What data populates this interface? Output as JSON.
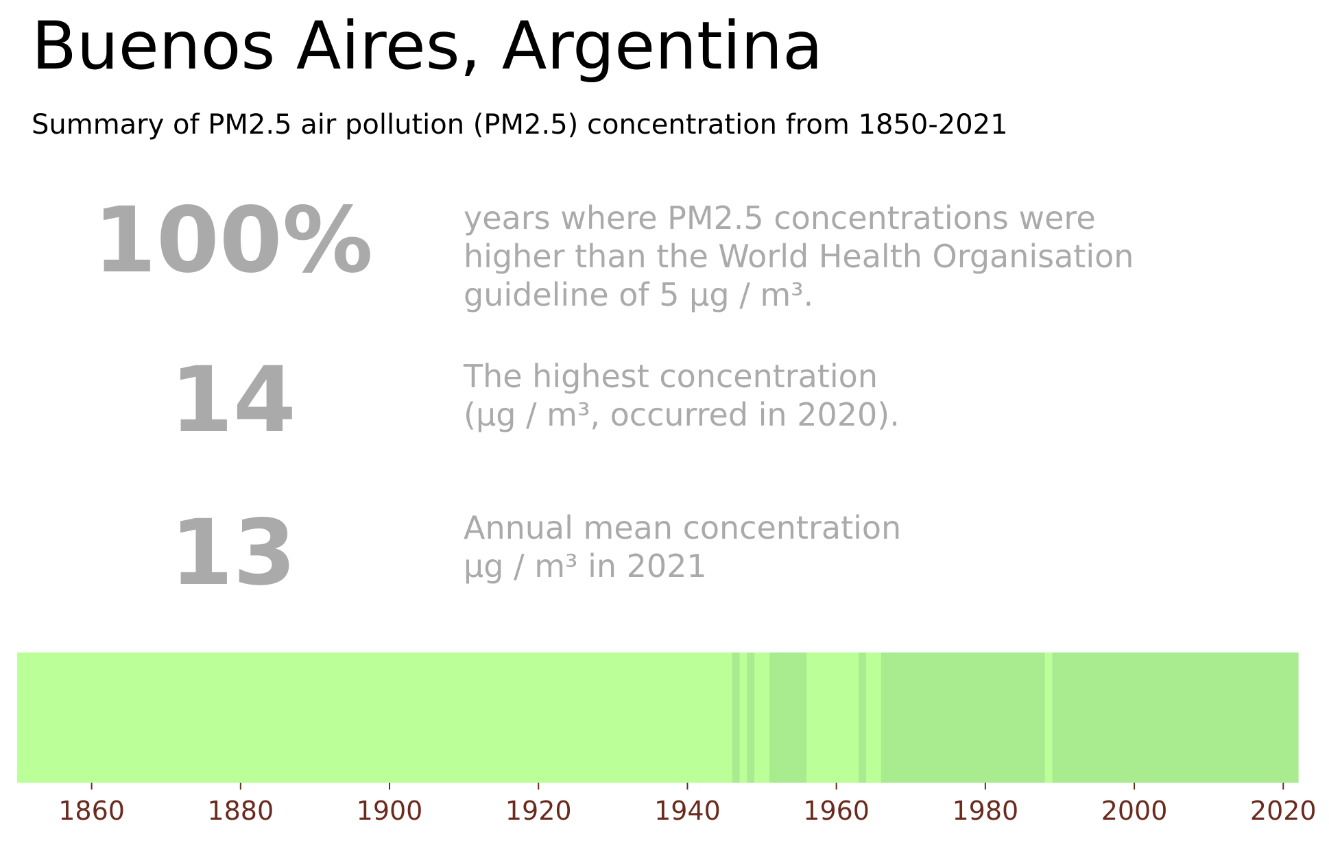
{
  "header": {
    "title": "Buenos Aires, Argentina",
    "subtitle": "Summary of PM2.5 air pollution (PM2.5) concentration from 1850-2021"
  },
  "stats": [
    {
      "value": "100%",
      "lines": [
        "years where PM2.5 concentrations were",
        "higher than the World Health Organisation",
        "guideline of 5 µg / m³."
      ]
    },
    {
      "value": "14",
      "lines": [
        "The highest concentration",
        "(µg / m³, occurred in 2020)."
      ]
    },
    {
      "value": "13",
      "lines": [
        "Annual mean concentration",
        "µg / m³ in 2021"
      ]
    }
  ],
  "chart_data": {
    "type": "heatmap",
    "xlim": [
      1850,
      2022
    ],
    "x_ticks": [
      1860,
      1880,
      1900,
      1920,
      1940,
      1960,
      1980,
      2000,
      2020
    ],
    "colors": {
      "light": "#baff97",
      "dark": "#a8ec8f",
      "tick": "#6b2a1e"
    },
    "categories": [
      "light",
      "dark"
    ],
    "bands": [
      {
        "start": 1850,
        "end": 1946,
        "category": "light"
      },
      {
        "start": 1946,
        "end": 1947,
        "category": "dark"
      },
      {
        "start": 1947,
        "end": 1948,
        "category": "light"
      },
      {
        "start": 1948,
        "end": 1949,
        "category": "dark"
      },
      {
        "start": 1949,
        "end": 1951,
        "category": "light"
      },
      {
        "start": 1951,
        "end": 1956,
        "category": "dark"
      },
      {
        "start": 1956,
        "end": 1963,
        "category": "light"
      },
      {
        "start": 1963,
        "end": 1964,
        "category": "dark"
      },
      {
        "start": 1964,
        "end": 1966,
        "category": "light"
      },
      {
        "start": 1966,
        "end": 1988,
        "category": "dark"
      },
      {
        "start": 1988,
        "end": 1989,
        "category": "light"
      },
      {
        "start": 1989,
        "end": 2022,
        "category": "dark"
      }
    ]
  }
}
